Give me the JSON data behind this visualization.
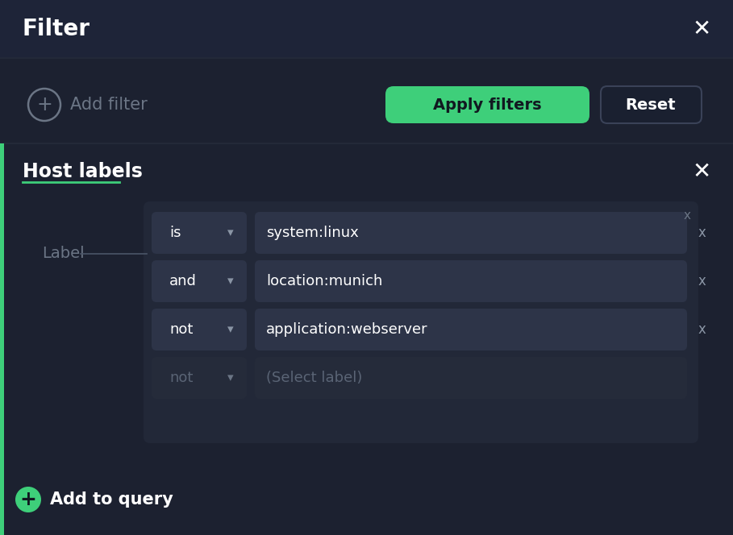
{
  "bg_color": "#1c2130",
  "header_bg": "#1e2438",
  "title": "Filter",
  "title_color": "#ffffff",
  "title_fontsize": 20,
  "close_x_color": "#ffffff",
  "add_filter_text": "Add filter",
  "add_filter_color": "#6b7585",
  "apply_btn_text": "Apply filters",
  "apply_btn_bg": "#3ecf7a",
  "apply_btn_text_color": "#111820",
  "reset_btn_text": "Reset",
  "reset_btn_bg": "#1a2030",
  "reset_btn_border": "#3a4258",
  "reset_btn_text_color": "#ffffff",
  "section_title": "Host labels",
  "section_title_color": "#ffffff",
  "section_title_fontsize": 17,
  "label_text": "Label",
  "label_color": "#6b7585",
  "inner_panel_bg": "#222838",
  "dropdown_bg": "#2d3448",
  "dropdown_dim_bg": "#252b3a",
  "dropdown_text_color": "#ffffff",
  "input_bg": "#2d3448",
  "input_dim_bg": "#252b3a",
  "input_text_color": "#ffffff",
  "placeholder_color": "#5a6475",
  "accent_green": "#3ecf7a",
  "rows": [
    {
      "operator": "is",
      "value": "system:linux",
      "placeholder": false,
      "dimmed": false
    },
    {
      "operator": "and",
      "value": "location:munich",
      "placeholder": false,
      "dimmed": false
    },
    {
      "operator": "not",
      "value": "application:webserver",
      "placeholder": false,
      "dimmed": false
    },
    {
      "operator": "not",
      "value": "(Select label)",
      "placeholder": true,
      "dimmed": true
    }
  ],
  "add_query_text": "Add to query",
  "add_query_color": "#ffffff",
  "header_sep_color": "#252b3a",
  "section_sep_color": "#252b3a"
}
